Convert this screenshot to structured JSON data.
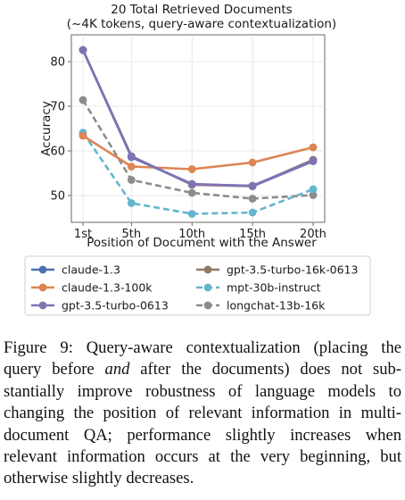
{
  "chart_data": {
    "type": "line",
    "title": "20 Total Retrieved Documents",
    "subtitle": "(~4K tokens, query-aware contextualization)",
    "xlabel": "Position of Document with the Answer",
    "ylabel": "Accuracy",
    "categories": [
      "1st",
      "5th",
      "10th",
      "15th",
      "20th"
    ],
    "x": [
      1,
      5,
      10,
      15,
      20
    ],
    "ylim": [
      44,
      86
    ],
    "yticks": [
      50,
      60,
      70,
      80
    ],
    "grid": true,
    "legend_position": "bottom",
    "series": [
      {
        "name": "claude-1.3",
        "values": [
          82.6,
          58.6,
          52.6,
          52.1,
          57.7
        ],
        "color": "#4c72b0",
        "dashed": false
      },
      {
        "name": "gpt-3.5-turbo-16k-0613",
        "values": [
          82.6,
          58.8,
          52.4,
          52.1,
          58.0
        ],
        "color": "#937860",
        "dashed": false
      },
      {
        "name": "claude-1.3-100k",
        "values": [
          63.4,
          56.5,
          55.9,
          57.4,
          60.8
        ],
        "color": "#dd8452",
        "dashed": false
      },
      {
        "name": "mpt-30b-instruct",
        "values": [
          64.1,
          48.3,
          45.9,
          46.2,
          51.4
        ],
        "color": "#64b5cd",
        "dashed": true
      },
      {
        "name": "gpt-3.5-turbo-0613",
        "values": [
          82.6,
          58.8,
          52.5,
          52.2,
          57.8
        ],
        "color": "#8172b3",
        "dashed": false
      },
      {
        "name": "longchat-13b-16k",
        "values": [
          71.4,
          53.5,
          50.6,
          49.3,
          50.1
        ],
        "color": "#8c8c8c",
        "dashed": true
      }
    ],
    "series_draw_order": [
      5,
      3,
      2,
      1,
      0,
      4
    ]
  },
  "caption": {
    "lines": [
      "Figure 9: Query-aware contextualization (placing the",
      "query before and after the documents) does not sub-",
      "stantially improve robustness of language models to",
      "changing the position of relevant information in multi-",
      "document QA; performance slightly increases when",
      "relevant information occurs at the very beginning, but",
      "otherwise slightly decreases."
    ],
    "italic_word": "and"
  }
}
